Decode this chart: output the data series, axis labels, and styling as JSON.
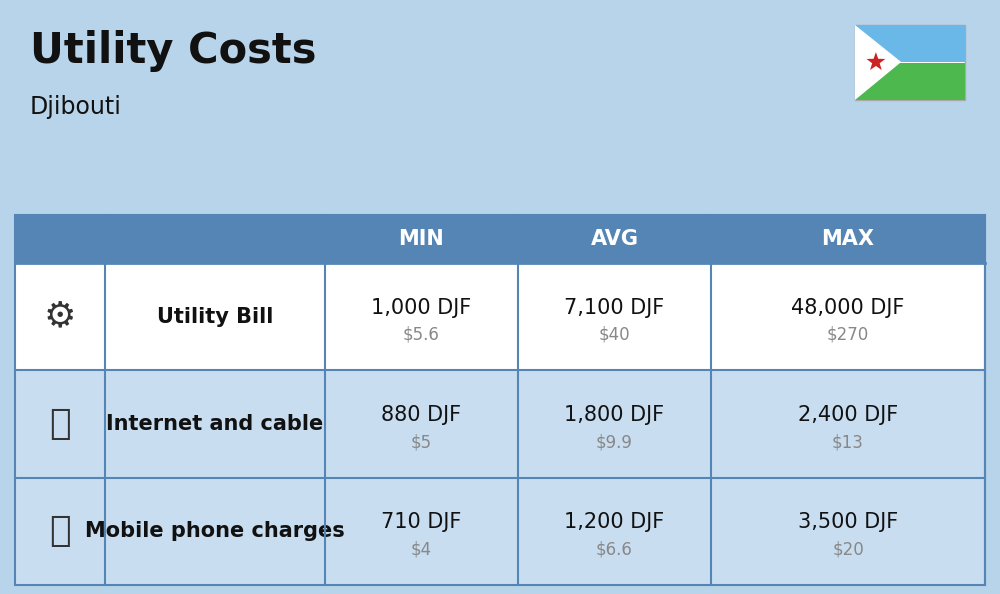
{
  "title": "Utility Costs",
  "subtitle": "Djibouti",
  "background_color": "#b8d4ea",
  "header_bg_color": "#5585b5",
  "header_text_color": "#ffffff",
  "row_bg_color_1": "#ffffff",
  "row_bg_color_2": "#c8ddf0",
  "separator_color": "#5585b5",
  "rows": [
    {
      "label": "Utility Bill",
      "min_djf": "1,000 DJF",
      "min_usd": "$5.6",
      "avg_djf": "7,100 DJF",
      "avg_usd": "$40",
      "max_djf": "48,000 DJF",
      "max_usd": "$270"
    },
    {
      "label": "Internet and cable",
      "min_djf": "880 DJF",
      "min_usd": "$5",
      "avg_djf": "1,800 DJF",
      "avg_usd": "$9.9",
      "max_djf": "2,400 DJF",
      "max_usd": "$13"
    },
    {
      "label": "Mobile phone charges",
      "min_djf": "710 DJF",
      "min_usd": "$4",
      "avg_djf": "1,200 DJF",
      "avg_usd": "$6.6",
      "max_djf": "3,500 DJF",
      "max_usd": "$20"
    }
  ],
  "title_fontsize": 30,
  "subtitle_fontsize": 17,
  "header_fontsize": 15,
  "label_fontsize": 15,
  "value_fontsize": 15,
  "usd_fontsize": 12,
  "flag_colors": {
    "blue": "#6ab8e8",
    "green": "#4db84d",
    "white": "#ffffff",
    "star": "#cc2222"
  }
}
